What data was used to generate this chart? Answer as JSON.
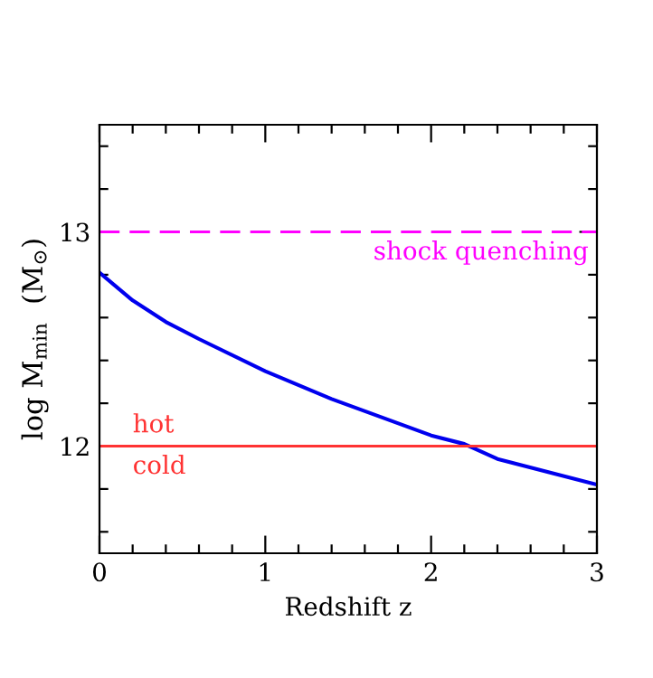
{
  "chart_data": {
    "type": "line",
    "xlabel": "Redshift z",
    "ylabel": "log M$_{min}$  (M$_{⊙}$)",
    "x": [
      0,
      0.2,
      0.4,
      0.6,
      1.0,
      1.4,
      2.0,
      2.2,
      2.4,
      3.0
    ],
    "series": [
      {
        "color": "#0000ee",
        "values": [
          12.81,
          12.68,
          12.58,
          12.5,
          12.35,
          12.22,
          12.05,
          12.01,
          11.94,
          11.82
        ]
      }
    ],
    "xlim": [
      0,
      3
    ],
    "ylim": [
      11.5,
      13.5
    ],
    "xticks": [
      0,
      {
        "value": 0.2,
        "label": null
      },
      {
        "value": 0.4,
        "label": null
      },
      {
        "value": 0.6,
        "label": null
      },
      {
        "value": 0.8,
        "label": null
      },
      1,
      {
        "value": 1.2,
        "label": null
      },
      {
        "value": 1.4,
        "label": null
      },
      {
        "value": 1.6,
        "label": null
      },
      {
        "value": 1.8,
        "label": null
      },
      2,
      {
        "value": 2.2,
        "label": null
      },
      {
        "value": 2.4,
        "label": null
      },
      {
        "value": 2.6,
        "label": null
      },
      {
        "value": 2.8,
        "label": null
      },
      3
    ],
    "yticks": [
      {
        "value": 11.6,
        "label": null
      },
      {
        "value": 11.8,
        "label": null
      },
      12,
      {
        "value": 12.2,
        "label": null
      },
      {
        "value": 12.4,
        "label": null
      },
      {
        "value": 12.6,
        "label": null
      },
      {
        "value": 12.8,
        "label": null
      },
      13,
      {
        "value": 13.2,
        "label": null
      },
      {
        "value": 13.4,
        "label": null
      }
    ],
    "ref_lines": [
      {
        "axis": "y",
        "value": 13,
        "label": "shock quenching",
        "color": "#ff00ff",
        "line_style": "dashed"
      },
      {
        "axis": "y",
        "value": 12,
        "color": "#ff3333",
        "line_style": "solid"
      }
    ],
    "annotations": [
      {
        "text": "hot",
        "x": 0.2,
        "y": 12.04
      },
      {
        "text": "cold",
        "x": 0.2,
        "y": 11.96
      }
    ],
    "grid": false,
    "marker": "none",
    "line_style": "solid"
  }
}
